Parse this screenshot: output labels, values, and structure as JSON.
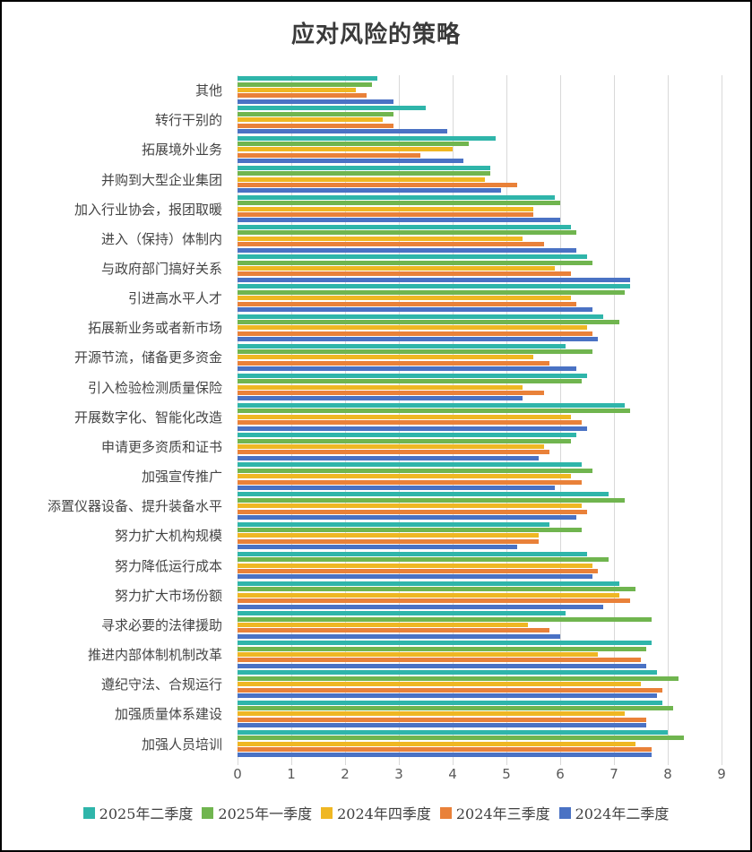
{
  "title": "应对风险的策略",
  "colors": {
    "q2_2025": "#2fb5aa",
    "q1_2025": "#70b54f",
    "q4_2024": "#efb723",
    "q3_2024": "#e98139",
    "q2_2024": "#4a72c4",
    "gridline": "#d9d9d9",
    "axis_text": "#595959"
  },
  "chart_data": {
    "type": "bar",
    "orientation": "horizontal",
    "title": "应对风险的策略",
    "xlabel": "",
    "ylabel": "",
    "xlim": [
      0,
      9
    ],
    "x_ticks": [
      "0",
      "1",
      "2",
      "3",
      "4",
      "5",
      "6",
      "7",
      "8",
      "9"
    ],
    "grid": true,
    "legend_position": "bottom",
    "categories": [
      "其他",
      "转行干别的",
      "拓展境外业务",
      "并购到大型企业集团",
      "加入行业协会，报团取暖",
      "进入（保持）体制内",
      "与政府部门搞好关系",
      "引进高水平人才",
      "拓展新业务或者新市场",
      "开源节流，储备更多资金",
      "引入检验检测质量保险",
      "开展数字化、智能化改造",
      "申请更多资质和证书",
      "加强宣传推广",
      "添置仪器设备、提升装备水平",
      "努力扩大机构规模",
      "努力降低运行成本",
      "努力扩大市场份额",
      "寻求必要的法律援助",
      "推进内部体制机制改革",
      "遵纪守法、合规运行",
      "加强质量体系建设",
      "加强人员培训"
    ],
    "series": [
      {
        "name": "2025年二季度",
        "color": "#2fb5aa",
        "values": [
          2.6,
          3.5,
          4.8,
          4.7,
          5.9,
          6.2,
          6.5,
          7.3,
          6.8,
          6.1,
          6.5,
          7.2,
          6.3,
          6.4,
          6.9,
          5.8,
          6.5,
          7.1,
          6.1,
          7.7,
          7.8,
          7.9,
          8.0
        ]
      },
      {
        "name": "2025年一季度",
        "color": "#70b54f",
        "values": [
          2.5,
          2.9,
          4.3,
          4.7,
          6.0,
          6.3,
          6.6,
          7.2,
          7.1,
          6.6,
          6.4,
          7.3,
          6.2,
          6.6,
          7.2,
          6.4,
          6.9,
          7.4,
          7.7,
          7.6,
          8.2,
          8.1,
          8.3
        ]
      },
      {
        "name": "2024年四季度",
        "color": "#efb723",
        "values": [
          2.2,
          2.7,
          4.0,
          4.6,
          5.5,
          5.3,
          5.9,
          6.2,
          6.5,
          5.5,
          5.3,
          6.2,
          5.7,
          6.2,
          6.4,
          5.6,
          6.6,
          7.1,
          5.4,
          6.7,
          7.5,
          7.2,
          7.4
        ]
      },
      {
        "name": "2024年三季度",
        "color": "#e98139",
        "values": [
          2.4,
          2.9,
          3.4,
          5.2,
          5.5,
          5.7,
          6.2,
          6.3,
          6.6,
          5.8,
          5.7,
          6.4,
          5.8,
          6.4,
          6.5,
          5.6,
          6.7,
          7.3,
          5.8,
          7.5,
          7.9,
          7.6,
          7.7
        ]
      },
      {
        "name": "2024年二季度",
        "color": "#4a72c4",
        "values": [
          2.9,
          3.9,
          4.2,
          4.9,
          6.0,
          6.3,
          7.3,
          6.6,
          6.7,
          6.3,
          5.3,
          6.5,
          5.6,
          5.9,
          6.3,
          5.2,
          6.6,
          6.8,
          6.0,
          7.6,
          7.8,
          7.6,
          7.7
        ]
      }
    ]
  }
}
